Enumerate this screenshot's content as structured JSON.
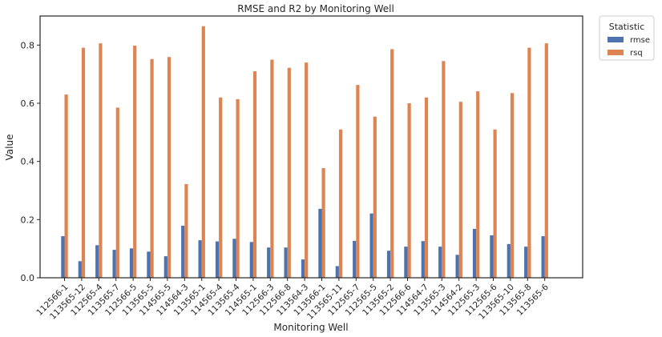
{
  "chart_data": {
    "type": "bar",
    "title": "RMSE and R2 by Monitoring Well",
    "xlabel": "Monitoring Well",
    "ylabel": "Value",
    "ylim": [
      0,
      0.9
    ],
    "yticks": [
      0.0,
      0.2,
      0.4,
      0.6,
      0.8
    ],
    "ytick_labels": [
      "0.0",
      "0.2",
      "0.4",
      "0.6",
      "0.8"
    ],
    "grid": false,
    "legend": {
      "title": "Statistic",
      "placement": "outside-top-right"
    },
    "categories": [
      "112566-1",
      "113565-12",
      "112565-4",
      "113565-7",
      "112566-5",
      "113565-5",
      "114565-5",
      "114564-3",
      "113565-1",
      "114565-4",
      "113565-4",
      "114565-1",
      "112566-3",
      "112566-8",
      "113564-3",
      "113566-1",
      "113565-11",
      "112565-7",
      "112565-5",
      "113565-2",
      "112566-6",
      "114564-7",
      "113565-3",
      "114564-2",
      "112565-3",
      "112565-6",
      "113565-10",
      "113565-8",
      "113565-6"
    ],
    "series": [
      {
        "name": "rmse",
        "color": "#4c72b0",
        "values": [
          0.143,
          0.057,
          0.112,
          0.096,
          0.101,
          0.09,
          0.074,
          0.179,
          0.129,
          0.125,
          0.134,
          0.123,
          0.104,
          0.104,
          0.063,
          0.237,
          0.04,
          0.127,
          0.221,
          0.093,
          0.107,
          0.126,
          0.107,
          0.079,
          0.168,
          0.146,
          0.116,
          0.107,
          0.143
        ]
      },
      {
        "name": "rsq",
        "color": "#dd8452",
        "values": [
          0.63,
          0.791,
          0.806,
          0.585,
          0.798,
          0.752,
          0.759,
          0.322,
          0.865,
          0.62,
          0.614,
          0.71,
          0.75,
          0.722,
          0.74,
          0.377,
          0.51,
          0.663,
          0.554,
          0.786,
          0.6,
          0.62,
          0.745,
          0.605,
          0.641,
          0.51,
          0.635,
          0.791,
          0.806
        ]
      }
    ]
  }
}
